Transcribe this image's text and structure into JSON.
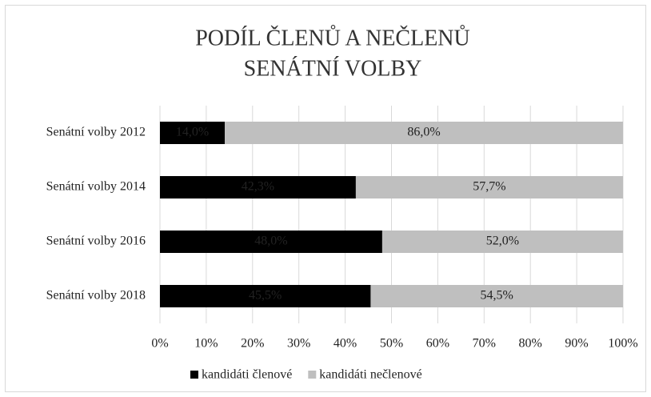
{
  "chart_data": {
    "type": "stacked_bar_horizontal",
    "title": [
      "PODÍL ČLENŮ A NEČLENŮ",
      "SENÁTNÍ VOLBY"
    ],
    "categories": [
      "Senátní volby 2012",
      "Senátní volby 2014",
      "Senátní volby 2016",
      "Senátní volby 2018"
    ],
    "series": [
      {
        "name": "kandidáti členové",
        "color": "#000000",
        "values": [
          14.0,
          42.3,
          48.0,
          45.5
        ],
        "value_labels": [
          "14,0%",
          "42,3%",
          "48,0%",
          "45,5%"
        ]
      },
      {
        "name": "kandidáti nečlenové",
        "color": "#bfbfbf",
        "values": [
          86.0,
          57.7,
          52.0,
          54.5
        ],
        "value_labels": [
          "86,0%",
          "57,7%",
          "52,0%",
          "54,5%"
        ]
      }
    ],
    "xlim": [
      0,
      100
    ],
    "xticks": [
      {
        "value": 0,
        "label": "0%"
      },
      {
        "value": 10,
        "label": "10%"
      },
      {
        "value": 20,
        "label": "20%"
      },
      {
        "value": 30,
        "label": "30%"
      },
      {
        "value": 40,
        "label": "40%"
      },
      {
        "value": 50,
        "label": "50%"
      },
      {
        "value": 60,
        "label": "60%"
      },
      {
        "value": 70,
        "label": "70%"
      },
      {
        "value": 80,
        "label": "80%"
      },
      {
        "value": 90,
        "label": "90%"
      },
      {
        "value": 100,
        "label": "100%"
      }
    ],
    "grid": true,
    "legend": "bottom"
  }
}
